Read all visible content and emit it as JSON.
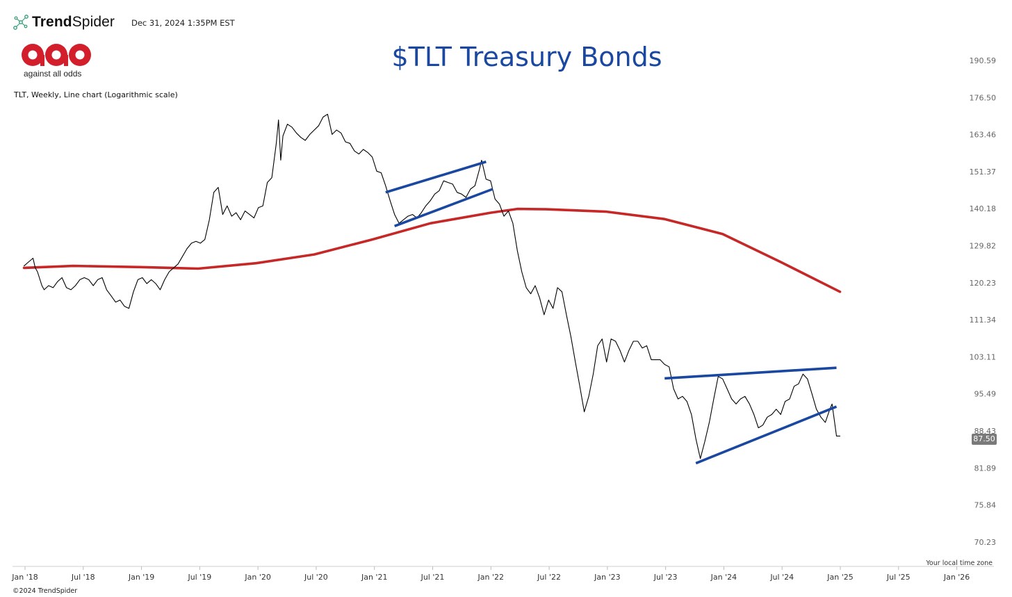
{
  "header": {
    "brand_name_bold": "Trend",
    "brand_name_rest": "Spider",
    "timestamp": "Dec 31, 2024 1:35PM EST",
    "logo_text": "against all odds",
    "subtitle": "TLT, Weekly, Line chart (Logarithmic scale)"
  },
  "footer": {
    "timezone_note": "Your local time zone",
    "copyright": "©2024 TrendSpider"
  },
  "chart_data": {
    "type": "line",
    "title": "$TLT Treasury Bonds",
    "ticker": "TLT",
    "interval": "Weekly",
    "scale": "log",
    "last_price": "87.50",
    "y_ticks": [
      "190.59",
      "176.50",
      "163.46",
      "151.37",
      "140.18",
      "129.82",
      "120.23",
      "111.34",
      "103.11",
      "95.49",
      "88.43",
      "81.89",
      "75.84",
      "70.23"
    ],
    "x_ticks": [
      "Jan '18",
      "Jul '18",
      "Jan '19",
      "Jul '19",
      "Jan '20",
      "Jul '20",
      "Jan '21",
      "Jul '21",
      "Jan '22",
      "Jul '22",
      "Jan '23",
      "Jul '23",
      "Jan '24",
      "Jul '24",
      "Jan '25",
      "Jul '25",
      "Jan '26"
    ],
    "series": [
      {
        "color": "#000000",
        "points": [
          [
            "2017-12-29",
            124.5
          ],
          [
            "2018-01-12",
            125.5
          ],
          [
            "2018-01-26",
            126.5
          ],
          [
            "2018-02-02",
            124.0
          ],
          [
            "2018-02-09",
            123.0
          ],
          [
            "2018-02-23",
            119.5
          ],
          [
            "2018-03-02",
            118.5
          ],
          [
            "2018-03-16",
            119.5
          ],
          [
            "2018-03-30",
            119.0
          ],
          [
            "2018-04-13",
            120.5
          ],
          [
            "2018-04-27",
            121.5
          ],
          [
            "2018-05-11",
            119.0
          ],
          [
            "2018-05-25",
            118.5
          ],
          [
            "2018-06-08",
            119.5
          ],
          [
            "2018-06-22",
            121.0
          ],
          [
            "2018-07-06",
            121.5
          ],
          [
            "2018-07-20",
            121.0
          ],
          [
            "2018-08-03",
            119.5
          ],
          [
            "2018-08-17",
            121.0
          ],
          [
            "2018-08-31",
            121.5
          ],
          [
            "2018-09-14",
            118.5
          ],
          [
            "2018-09-28",
            117.0
          ],
          [
            "2018-10-12",
            115.5
          ],
          [
            "2018-10-26",
            116.0
          ],
          [
            "2018-11-09",
            114.5
          ],
          [
            "2018-11-23",
            114.0
          ],
          [
            "2018-12-07",
            118.0
          ],
          [
            "2018-12-21",
            121.0
          ],
          [
            "2019-01-04",
            121.5
          ],
          [
            "2019-01-18",
            120.0
          ],
          [
            "2019-02-01",
            121.0
          ],
          [
            "2019-02-15",
            120.0
          ],
          [
            "2019-03-01",
            118.5
          ],
          [
            "2019-03-15",
            121.0
          ],
          [
            "2019-03-29",
            123.0
          ],
          [
            "2019-04-12",
            124.0
          ],
          [
            "2019-04-26",
            125.0
          ],
          [
            "2019-05-10",
            127.0
          ],
          [
            "2019-05-24",
            129.0
          ],
          [
            "2019-06-07",
            130.5
          ],
          [
            "2019-06-21",
            131.0
          ],
          [
            "2019-07-05",
            130.5
          ],
          [
            "2019-07-19",
            131.5
          ],
          [
            "2019-08-02",
            137.0
          ],
          [
            "2019-08-16",
            145.0
          ],
          [
            "2019-08-30",
            146.5
          ],
          [
            "2019-09-13",
            138.5
          ],
          [
            "2019-09-27",
            141.0
          ],
          [
            "2019-10-11",
            138.0
          ],
          [
            "2019-10-25",
            139.0
          ],
          [
            "2019-11-08",
            137.0
          ],
          [
            "2019-11-22",
            139.5
          ],
          [
            "2019-12-06",
            138.5
          ],
          [
            "2019-12-20",
            137.5
          ],
          [
            "2020-01-03",
            140.5
          ],
          [
            "2020-01-17",
            141.0
          ],
          [
            "2020-01-31",
            148.0
          ],
          [
            "2020-02-14",
            149.5
          ],
          [
            "2020-02-28",
            160.5
          ],
          [
            "2020-03-06",
            168.5
          ],
          [
            "2020-03-13",
            155.0
          ],
          [
            "2020-03-20",
            163.0
          ],
          [
            "2020-04-03",
            167.0
          ],
          [
            "2020-04-17",
            166.0
          ],
          [
            "2020-05-01",
            164.0
          ],
          [
            "2020-05-15",
            162.5
          ],
          [
            "2020-05-29",
            161.5
          ],
          [
            "2020-06-12",
            163.5
          ],
          [
            "2020-06-26",
            165.0
          ],
          [
            "2020-07-10",
            166.5
          ],
          [
            "2020-07-24",
            169.5
          ],
          [
            "2020-08-07",
            170.5
          ],
          [
            "2020-08-21",
            163.5
          ],
          [
            "2020-09-04",
            165.0
          ],
          [
            "2020-09-18",
            164.0
          ],
          [
            "2020-10-02",
            161.0
          ],
          [
            "2020-10-16",
            160.5
          ],
          [
            "2020-10-30",
            158.0
          ],
          [
            "2020-11-13",
            157.0
          ],
          [
            "2020-11-27",
            158.5
          ],
          [
            "2020-12-11",
            157.5
          ],
          [
            "2020-12-25",
            156.0
          ],
          [
            "2021-01-08",
            151.5
          ],
          [
            "2021-01-22",
            151.0
          ],
          [
            "2021-02-05",
            147.0
          ],
          [
            "2021-02-19",
            142.5
          ],
          [
            "2021-03-05",
            138.5
          ],
          [
            "2021-03-19",
            136.0
          ],
          [
            "2021-04-02",
            137.0
          ],
          [
            "2021-04-16",
            138.0
          ],
          [
            "2021-04-30",
            138.5
          ],
          [
            "2021-05-14",
            137.5
          ],
          [
            "2021-05-28",
            139.0
          ],
          [
            "2021-06-11",
            141.0
          ],
          [
            "2021-06-25",
            142.5
          ],
          [
            "2021-07-09",
            144.5
          ],
          [
            "2021-07-23",
            145.5
          ],
          [
            "2021-08-06",
            148.5
          ],
          [
            "2021-08-20",
            148.0
          ],
          [
            "2021-09-03",
            147.5
          ],
          [
            "2021-09-17",
            145.0
          ],
          [
            "2021-10-01",
            144.5
          ],
          [
            "2021-10-15",
            143.5
          ],
          [
            "2021-10-29",
            146.0
          ],
          [
            "2021-11-12",
            147.0
          ],
          [
            "2021-11-26",
            152.0
          ],
          [
            "2021-12-03",
            155.0
          ],
          [
            "2021-12-17",
            149.0
          ],
          [
            "2021-12-31",
            148.5
          ],
          [
            "2022-01-14",
            143.0
          ],
          [
            "2022-01-28",
            141.5
          ],
          [
            "2022-02-11",
            138.0
          ],
          [
            "2022-02-25",
            139.5
          ],
          [
            "2022-03-11",
            136.0
          ],
          [
            "2022-03-25",
            128.5
          ],
          [
            "2022-04-08",
            123.0
          ],
          [
            "2022-04-22",
            119.0
          ],
          [
            "2022-05-06",
            117.5
          ],
          [
            "2022-05-20",
            119.5
          ],
          [
            "2022-06-03",
            116.5
          ],
          [
            "2022-06-17",
            112.5
          ],
          [
            "2022-07-01",
            116.0
          ],
          [
            "2022-07-15",
            114.0
          ],
          [
            "2022-07-29",
            119.0
          ],
          [
            "2022-08-12",
            118.0
          ],
          [
            "2022-08-26",
            112.5
          ],
          [
            "2022-09-09",
            107.5
          ],
          [
            "2022-09-23",
            102.0
          ],
          [
            "2022-10-07",
            97.0
          ],
          [
            "2022-10-21",
            92.0
          ],
          [
            "2022-11-04",
            95.0
          ],
          [
            "2022-11-18",
            99.5
          ],
          [
            "2022-12-02",
            105.5
          ],
          [
            "2022-12-16",
            107.0
          ],
          [
            "2022-12-30",
            102.0
          ],
          [
            "2023-01-13",
            107.0
          ],
          [
            "2023-01-27",
            106.5
          ],
          [
            "2023-02-10",
            104.5
          ],
          [
            "2023-02-24",
            102.0
          ],
          [
            "2023-03-10",
            104.5
          ],
          [
            "2023-03-24",
            106.5
          ],
          [
            "2023-04-07",
            106.5
          ],
          [
            "2023-04-21",
            105.0
          ],
          [
            "2023-05-05",
            105.5
          ],
          [
            "2023-05-19",
            102.5
          ],
          [
            "2023-06-02",
            102.5
          ],
          [
            "2023-06-16",
            102.5
          ],
          [
            "2023-06-30",
            101.5
          ],
          [
            "2023-07-14",
            101.0
          ],
          [
            "2023-07-28",
            96.5
          ],
          [
            "2023-08-11",
            94.5
          ],
          [
            "2023-08-25",
            95.0
          ],
          [
            "2023-09-08",
            94.0
          ],
          [
            "2023-09-22",
            91.5
          ],
          [
            "2023-10-06",
            87.0
          ],
          [
            "2023-10-20",
            83.5
          ],
          [
            "2023-11-03",
            86.5
          ],
          [
            "2023-11-17",
            90.0
          ],
          [
            "2023-12-01",
            94.5
          ],
          [
            "2023-12-15",
            99.0
          ],
          [
            "2023-12-29",
            98.5
          ],
          [
            "2024-01-12",
            96.5
          ],
          [
            "2024-01-26",
            94.5
          ],
          [
            "2024-02-09",
            93.5
          ],
          [
            "2024-02-23",
            94.5
          ],
          [
            "2024-03-08",
            95.0
          ],
          [
            "2024-03-22",
            93.5
          ],
          [
            "2024-04-05",
            91.5
          ],
          [
            "2024-04-19",
            89.0
          ],
          [
            "2024-05-03",
            89.5
          ],
          [
            "2024-05-17",
            91.0
          ],
          [
            "2024-05-31",
            91.5
          ],
          [
            "2024-06-14",
            92.5
          ],
          [
            "2024-06-28",
            91.5
          ],
          [
            "2024-07-12",
            94.0
          ],
          [
            "2024-07-26",
            94.5
          ],
          [
            "2024-08-09",
            97.0
          ],
          [
            "2024-08-23",
            97.5
          ],
          [
            "2024-09-06",
            99.5
          ],
          [
            "2024-09-20",
            98.5
          ],
          [
            "2024-10-04",
            95.5
          ],
          [
            "2024-10-18",
            92.5
          ],
          [
            "2024-11-01",
            91.0
          ],
          [
            "2024-11-15",
            90.0
          ],
          [
            "2024-11-29",
            92.5
          ],
          [
            "2024-12-06",
            93.5
          ],
          [
            "2024-12-13",
            90.5
          ],
          [
            "2024-12-20",
            87.5
          ],
          [
            "2024-12-31",
            87.5
          ]
        ]
      },
      {
        "color": "#c62828",
        "points": [
          [
            "2017-12-29",
            124.0
          ],
          [
            "2018-06-01",
            124.5
          ],
          [
            "2018-12-28",
            124.2
          ],
          [
            "2019-06-28",
            123.8
          ],
          [
            "2019-12-27",
            125.2
          ],
          [
            "2020-06-26",
            127.5
          ],
          [
            "2020-12-25",
            131.5
          ],
          [
            "2021-06-25",
            136.0
          ],
          [
            "2021-12-31",
            139.0
          ],
          [
            "2022-03-25",
            140.1
          ],
          [
            "2022-06-24",
            140.0
          ],
          [
            "2022-12-30",
            139.3
          ],
          [
            "2023-06-30",
            137.2
          ],
          [
            "2023-12-29",
            133.0
          ],
          [
            "2024-06-28",
            125.5
          ],
          [
            "2024-12-31",
            118.0
          ]
        ]
      }
    ],
    "annotations": [
      {
        "type": "trendline",
        "color": "#1a47a0",
        "from": [
          "2021-02-05",
          145.0
        ],
        "to": [
          "2021-12-17",
          154.5
        ]
      },
      {
        "type": "trendline",
        "color": "#1a47a0",
        "from": [
          "2021-03-05",
          135.2
        ],
        "to": [
          "2022-01-07",
          146.0
        ]
      },
      {
        "type": "trendline",
        "color": "#1a47a0",
        "from": [
          "2023-06-30",
          98.6
        ],
        "to": [
          "2024-12-20",
          100.8
        ]
      },
      {
        "type": "trendline",
        "color": "#1a47a0",
        "from": [
          "2023-10-06",
          82.7
        ],
        "to": [
          "2024-12-20",
          93.0
        ]
      }
    ],
    "grid": false,
    "legend": "none"
  }
}
